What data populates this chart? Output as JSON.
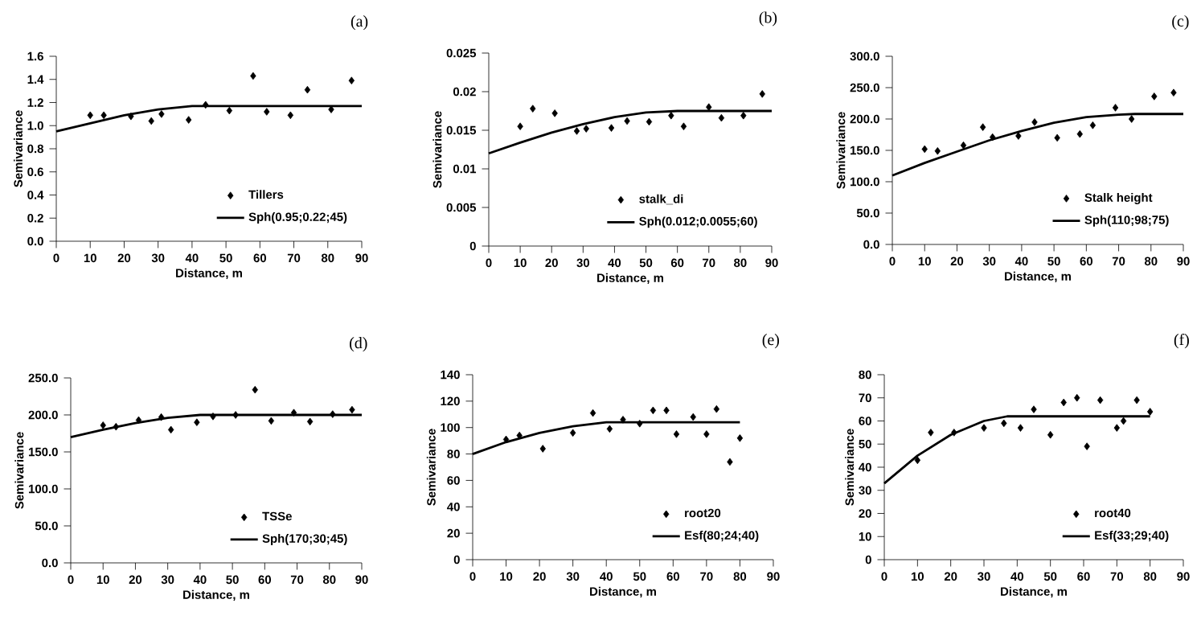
{
  "chart_data": [
    {
      "type": "scatter",
      "title": "(a)",
      "xlabel": "Distance, m",
      "ylabel": "Semivariance",
      "xlim": [
        0,
        90
      ],
      "ylim": [
        0,
        1.6
      ],
      "xticks": [
        0,
        10,
        20,
        30,
        40,
        50,
        60,
        70,
        80,
        90
      ],
      "yticks": [
        {
          "value": 0,
          "label": "0.0"
        },
        0.2,
        0.4,
        0.6,
        0.8,
        {
          "value": 1,
          "label": "1.0"
        },
        1.2,
        1.4,
        1.6
      ],
      "legend": "bottom right",
      "series": [
        {
          "name": "Tillers",
          "marker": "diamond",
          "color": "#000000",
          "x": [
            10,
            14,
            22,
            28,
            31,
            39,
            44,
            51,
            58,
            62,
            69,
            74,
            81,
            87
          ],
          "values": [
            1.09,
            1.09,
            1.08,
            1.04,
            1.1,
            1.05,
            1.18,
            1.13,
            1.43,
            1.12,
            1.09,
            1.31,
            1.14,
            1.39
          ]
        },
        {
          "name": "Sph(0.95;0.22;45)",
          "type": "line",
          "marker": "none",
          "line_style": "solid",
          "color": "#000000",
          "x": [
            0,
            10,
            20,
            30,
            40,
            45,
            90
          ],
          "values": [
            0.95,
            1.02,
            1.09,
            1.14,
            1.17,
            1.17,
            1.17
          ]
        }
      ]
    },
    {
      "type": "scatter",
      "title": "(b)",
      "xlabel": "Distance, m",
      "ylabel": "Semivariance",
      "xlim": [
        0,
        90
      ],
      "ylim": [
        0,
        0.025
      ],
      "xticks": [
        0,
        10,
        20,
        30,
        40,
        50,
        60,
        70,
        80,
        90
      ],
      "yticks": [
        0,
        0.005,
        0.01,
        0.015,
        0.02,
        0.025
      ],
      "legend": "bottom right",
      "series": [
        {
          "name": "stalk_di",
          "marker": "diamond",
          "color": "#000000",
          "x": [
            10,
            14,
            21,
            28,
            31,
            39,
            44,
            51,
            58,
            62,
            70,
            74,
            81,
            87
          ],
          "values": [
            0.0155,
            0.0178,
            0.0172,
            0.0149,
            0.0152,
            0.0153,
            0.0162,
            0.0161,
            0.0169,
            0.0155,
            0.018,
            0.0166,
            0.0169,
            0.0197
          ]
        },
        {
          "name": "Sph(0.012;0.0055;60)",
          "type": "line",
          "marker": "none",
          "line_style": "solid",
          "color": "#000000",
          "x": [
            0,
            10,
            20,
            30,
            40,
            50,
            60,
            90
          ],
          "values": [
            0.012,
            0.0134,
            0.0147,
            0.0158,
            0.0167,
            0.0173,
            0.0175,
            0.0175
          ]
        }
      ]
    },
    {
      "type": "scatter",
      "title": "(c)",
      "xlabel": "Distance, m",
      "ylabel": "Semivariance",
      "xlim": [
        0,
        90
      ],
      "ylim": [
        0,
        300
      ],
      "xticks": [
        0,
        10,
        20,
        30,
        40,
        50,
        60,
        70,
        80,
        90
      ],
      "yticks": [
        {
          "value": 0,
          "label": "0.0"
        },
        {
          "value": 50,
          "label": "50.0"
        },
        {
          "value": 100,
          "label": "100.0"
        },
        {
          "value": 150,
          "label": "150.0"
        },
        {
          "value": 200,
          "label": "200.0"
        },
        {
          "value": 250,
          "label": "250.0"
        },
        {
          "value": 300,
          "label": "300.0"
        }
      ],
      "legend": "bottom right",
      "series": [
        {
          "name": "Stalk height",
          "marker": "diamond",
          "color": "#000000",
          "x": [
            10,
            14,
            22,
            28,
            31,
            39,
            44,
            51,
            58,
            62,
            69,
            74,
            81,
            87
          ],
          "values": [
            152,
            149,
            158,
            187,
            171,
            173,
            195,
            170,
            176,
            190,
            218,
            200,
            236,
            242
          ]
        },
        {
          "name": "Sph(110;98;75)",
          "type": "line",
          "marker": "none",
          "line_style": "solid",
          "color": "#000000",
          "x": [
            0,
            10,
            20,
            30,
            40,
            50,
            60,
            70,
            75,
            90
          ],
          "values": [
            110,
            130,
            148,
            166,
            181,
            194,
            203,
            207,
            208,
            208
          ]
        }
      ]
    },
    {
      "type": "scatter",
      "title": "(d)",
      "xlabel": "Distance, m",
      "ylabel": "Semivariance",
      "xlim": [
        0,
        90
      ],
      "ylim": [
        0,
        250
      ],
      "xticks": [
        0,
        10,
        20,
        30,
        40,
        50,
        60,
        70,
        80,
        90
      ],
      "yticks": [
        {
          "value": 0,
          "label": "0.0"
        },
        {
          "value": 50,
          "label": "50.0"
        },
        {
          "value": 100,
          "label": "100.0"
        },
        {
          "value": 150,
          "label": "150.0"
        },
        {
          "value": 200,
          "label": "200.0"
        },
        {
          "value": 250,
          "label": "250.0"
        }
      ],
      "legend": "bottom right",
      "series": [
        {
          "name": "TSSe",
          "marker": "diamond",
          "color": "#000000",
          "x": [
            10,
            14,
            21,
            28,
            31,
            39,
            44,
            51,
            57,
            62,
            69,
            74,
            81,
            87
          ],
          "values": [
            186,
            184,
            193,
            197,
            180,
            190,
            198,
            200,
            234,
            192,
            203,
            191,
            201,
            207
          ]
        },
        {
          "name": "Sph(170;30;45)",
          "type": "line",
          "marker": "none",
          "line_style": "solid",
          "color": "#000000",
          "x": [
            0,
            10,
            20,
            30,
            40,
            45,
            90
          ],
          "values": [
            170,
            180,
            189,
            196,
            200,
            200,
            200
          ]
        }
      ]
    },
    {
      "type": "scatter",
      "title": "(e)",
      "xlabel": "Distance, m",
      "ylabel": "Semivariance",
      "xlim": [
        0,
        90
      ],
      "ylim": [
        0,
        140
      ],
      "xticks": [
        0,
        10,
        20,
        30,
        40,
        50,
        60,
        70,
        80,
        90
      ],
      "yticks": [
        0,
        20,
        40,
        60,
        80,
        100,
        120,
        140
      ],
      "legend": "bottom right",
      "series": [
        {
          "name": "root20",
          "marker": "diamond",
          "color": "#000000",
          "x": [
            10,
            14,
            21,
            30,
            36,
            41,
            45,
            50,
            54,
            58,
            61,
            66,
            70,
            73,
            77,
            80
          ],
          "values": [
            91,
            94,
            84,
            96,
            111,
            99,
            106,
            103,
            113,
            113,
            95,
            108,
            95,
            114,
            74,
            92
          ]
        },
        {
          "name": "Esf(80;24;40)",
          "type": "line",
          "marker": "none",
          "line_style": "solid",
          "color": "#000000",
          "x": [
            0,
            10,
            20,
            30,
            40,
            80
          ],
          "values": [
            80,
            89,
            96,
            101,
            104,
            104
          ]
        }
      ]
    },
    {
      "type": "scatter",
      "title": "(f)",
      "xlabel": "Distance, m",
      "ylabel": "Semivariance",
      "xlim": [
        0,
        90
      ],
      "ylim": [
        0,
        80
      ],
      "xticks": [
        0,
        10,
        20,
        30,
        40,
        50,
        60,
        70,
        80,
        90
      ],
      "yticks": [
        0,
        10,
        20,
        30,
        40,
        50,
        60,
        70,
        80
      ],
      "legend": "bottom right",
      "series": [
        {
          "name": "root40",
          "marker": "diamond",
          "color": "#000000",
          "x": [
            10,
            14,
            21,
            30,
            36,
            41,
            45,
            50,
            54,
            58,
            61,
            65,
            70,
            72,
            76,
            80
          ],
          "values": [
            43,
            55,
            55,
            57,
            59,
            57,
            65,
            54,
            68,
            70,
            49,
            69,
            57,
            60,
            69,
            64
          ]
        },
        {
          "name": "Esf(33;29;40)",
          "type": "line",
          "marker": "none",
          "line_style": "solid",
          "color": "#000000",
          "x": [
            0,
            10,
            20,
            30,
            37,
            80
          ],
          "values": [
            33,
            45,
            54,
            60,
            62,
            62
          ]
        }
      ]
    }
  ]
}
